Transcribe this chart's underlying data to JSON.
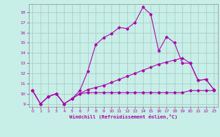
{
  "title": "",
  "xlabel": "Windchill (Refroidissement éolien,°C)",
  "ylabel": "",
  "bg_color": "#c8eee8",
  "line_color": "#aa00aa",
  "grid_color": "#aacccc",
  "xlim": [
    -0.5,
    23.5
  ],
  "ylim": [
    8.7,
    18.8
  ],
  "xticks": [
    0,
    1,
    2,
    3,
    4,
    5,
    6,
    7,
    8,
    9,
    10,
    11,
    12,
    13,
    14,
    15,
    16,
    17,
    18,
    19,
    20,
    21,
    22,
    23
  ],
  "yticks": [
    9,
    10,
    11,
    12,
    13,
    14,
    15,
    16,
    17,
    18
  ],
  "line1_x": [
    0,
    1,
    2,
    3,
    4,
    5,
    6,
    7,
    8,
    9,
    10,
    11,
    12,
    13,
    14,
    15,
    16,
    17,
    18,
    19,
    20,
    21,
    22,
    23
  ],
  "line1_y": [
    10.3,
    9.0,
    9.7,
    10.0,
    9.0,
    9.5,
    10.0,
    10.1,
    10.1,
    10.1,
    10.1,
    10.1,
    10.1,
    10.1,
    10.1,
    10.1,
    10.1,
    10.1,
    10.1,
    10.1,
    10.3,
    10.3,
    10.3,
    10.3
  ],
  "line2_x": [
    0,
    1,
    2,
    3,
    4,
    5,
    6,
    7,
    8,
    9,
    10,
    11,
    12,
    13,
    14,
    15,
    16,
    17,
    18,
    19,
    20,
    21,
    22,
    23
  ],
  "line2_y": [
    10.3,
    9.0,
    9.7,
    10.0,
    9.0,
    9.5,
    10.0,
    10.4,
    10.6,
    10.8,
    11.1,
    11.4,
    11.7,
    12.0,
    12.3,
    12.6,
    12.9,
    13.1,
    13.3,
    13.5,
    13.0,
    11.3,
    11.4,
    10.4
  ],
  "line3_x": [
    0,
    1,
    2,
    3,
    4,
    5,
    6,
    7,
    8,
    9,
    10,
    11,
    12,
    13,
    14,
    15,
    16,
    17,
    18,
    19,
    20,
    21,
    22,
    23
  ],
  "line3_y": [
    10.3,
    9.0,
    9.7,
    10.0,
    9.0,
    9.5,
    10.3,
    12.2,
    14.8,
    15.5,
    15.9,
    16.5,
    16.4,
    17.0,
    18.5,
    17.8,
    14.2,
    15.6,
    15.0,
    13.0,
    13.0,
    11.3,
    11.4,
    10.4
  ]
}
